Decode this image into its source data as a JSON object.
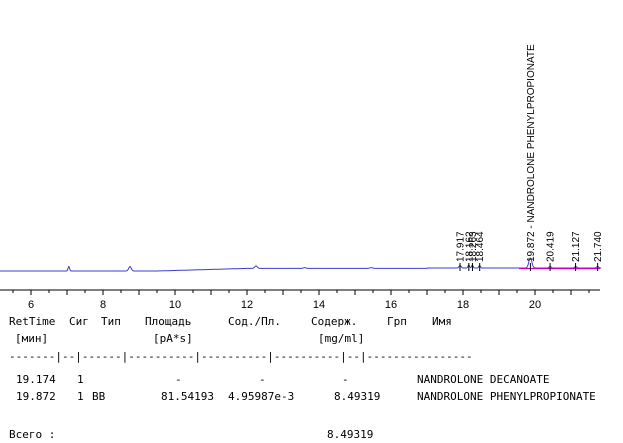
{
  "chromatogram": {
    "axis_ticks": [
      "6",
      "8",
      "10",
      "12",
      "14",
      "16",
      "18",
      "20"
    ],
    "peak_labels": [
      {
        "text": "17.917",
        "rt": 17.917,
        "size": 10
      },
      {
        "text": "18.162",
        "rt": 18.162,
        "size": 10
      },
      {
        "text": "18.263",
        "rt": 18.263,
        "size": 10
      },
      {
        "text": "18.464",
        "rt": 18.464,
        "size": 10
      },
      {
        "text": "19.872 - NANDROLONE PHENYLPROPIONATE",
        "rt": 19.872,
        "size": 10
      },
      {
        "text": "20.419",
        "rt": 20.419,
        "size": 10
      },
      {
        "text": "21.127",
        "rt": 21.127,
        "size": 10
      },
      {
        "text": "21.740",
        "rt": 21.74,
        "size": 10
      }
    ],
    "colors": {
      "signal": "#3c3cd2",
      "baseline_marker": "#c800c8",
      "axis": "#000000"
    }
  },
  "report": {
    "header1": {
      "rettime": "RetTime",
      "sig": "Сиг",
      "type": "Тип",
      "area": "Площадь",
      "amt_area": "Сод./Пл.",
      "amount": "Содерж.",
      "grp": "Грп",
      "name": "Имя"
    },
    "header2": {
      "rettime": "[мин]",
      "area": "[pA*s]",
      "amount": "[mg/ml]"
    },
    "separator": "-------|--|------|----------|----------|----------|--|----------------",
    "rows": [
      {
        "rettime": "19.174",
        "sig": "1",
        "type": "",
        "area": "-",
        "amt_area": "-",
        "amount": "-",
        "name": "NANDROLONE DECANOATE"
      },
      {
        "rettime": "19.872",
        "sig": "1",
        "type": "BB",
        "area": "81.54193",
        "amt_area": "4.95987e-3",
        "amount": "8.49319",
        "name": "NANDROLONE PHENYLPROPIONATE"
      }
    ],
    "total_label": "Всего :",
    "total_value": "8.49319"
  }
}
